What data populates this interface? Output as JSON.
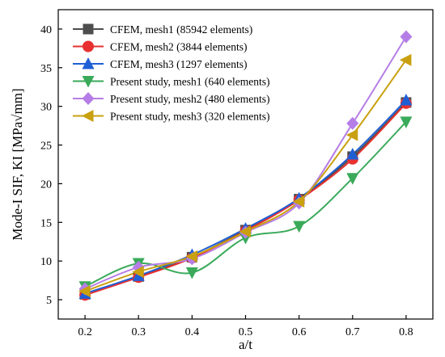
{
  "chart_data": {
    "type": "line",
    "title": "",
    "xlabel": "a/t",
    "ylabel": "Mode-I SIF,  KI [MPa√mm]",
    "xlim": [
      0.15,
      0.85
    ],
    "ylim": [
      2.5,
      42.5
    ],
    "x_ticks": [
      "0.2",
      "0.3",
      "0.4",
      "0.5",
      "0.6",
      "0.7",
      "0.8"
    ],
    "y_ticks": [
      "5",
      "10",
      "15",
      "20",
      "25",
      "30",
      "35",
      "40"
    ],
    "x_tick_values": [
      0.2,
      0.3,
      0.4,
      0.5,
      0.6,
      0.7,
      0.8
    ],
    "y_tick_values": [
      5,
      10,
      15,
      20,
      25,
      30,
      35,
      40
    ],
    "grid": false,
    "legend_position": "top-left",
    "x": [
      0.2,
      0.3,
      0.4,
      0.5,
      0.6,
      0.7,
      0.8
    ],
    "series": [
      {
        "name": "CFEM, mesh1 (85942 elements)",
        "color": "#4d4d4d",
        "marker": "square",
        "values": [
          5.7,
          8.0,
          10.5,
          14.0,
          18.0,
          23.5,
          30.5
        ]
      },
      {
        "name": "CFEM, mesh2 (3844 elements)",
        "color": "#e83030",
        "marker": "circle",
        "values": [
          5.6,
          7.9,
          10.4,
          13.9,
          17.9,
          23.2,
          30.4
        ]
      },
      {
        "name": "CFEM, mesh3 (1297 elements)",
        "color": "#1f5fd6",
        "marker": "triangle-up",
        "values": [
          5.8,
          8.1,
          10.8,
          14.2,
          18.1,
          23.8,
          30.8
        ]
      },
      {
        "name": "Present study, mesh1 (640 elements)",
        "color": "#3aaa5a",
        "marker": "triangle-down",
        "values": [
          6.7,
          9.7,
          8.5,
          13.0,
          14.5,
          20.7,
          28.0
        ]
      },
      {
        "name": "Present study, mesh2 (480 elements)",
        "color": "#b57ee6",
        "marker": "diamond",
        "values": [
          6.4,
          9.2,
          10.3,
          13.7,
          17.5,
          27.8,
          39.0
        ]
      },
      {
        "name": "Present study, mesh3 (320 elements)",
        "color": "#c9a010",
        "marker": "triangle-left",
        "values": [
          6.1,
          8.6,
          10.6,
          13.8,
          17.7,
          26.3,
          36.0
        ]
      }
    ]
  }
}
